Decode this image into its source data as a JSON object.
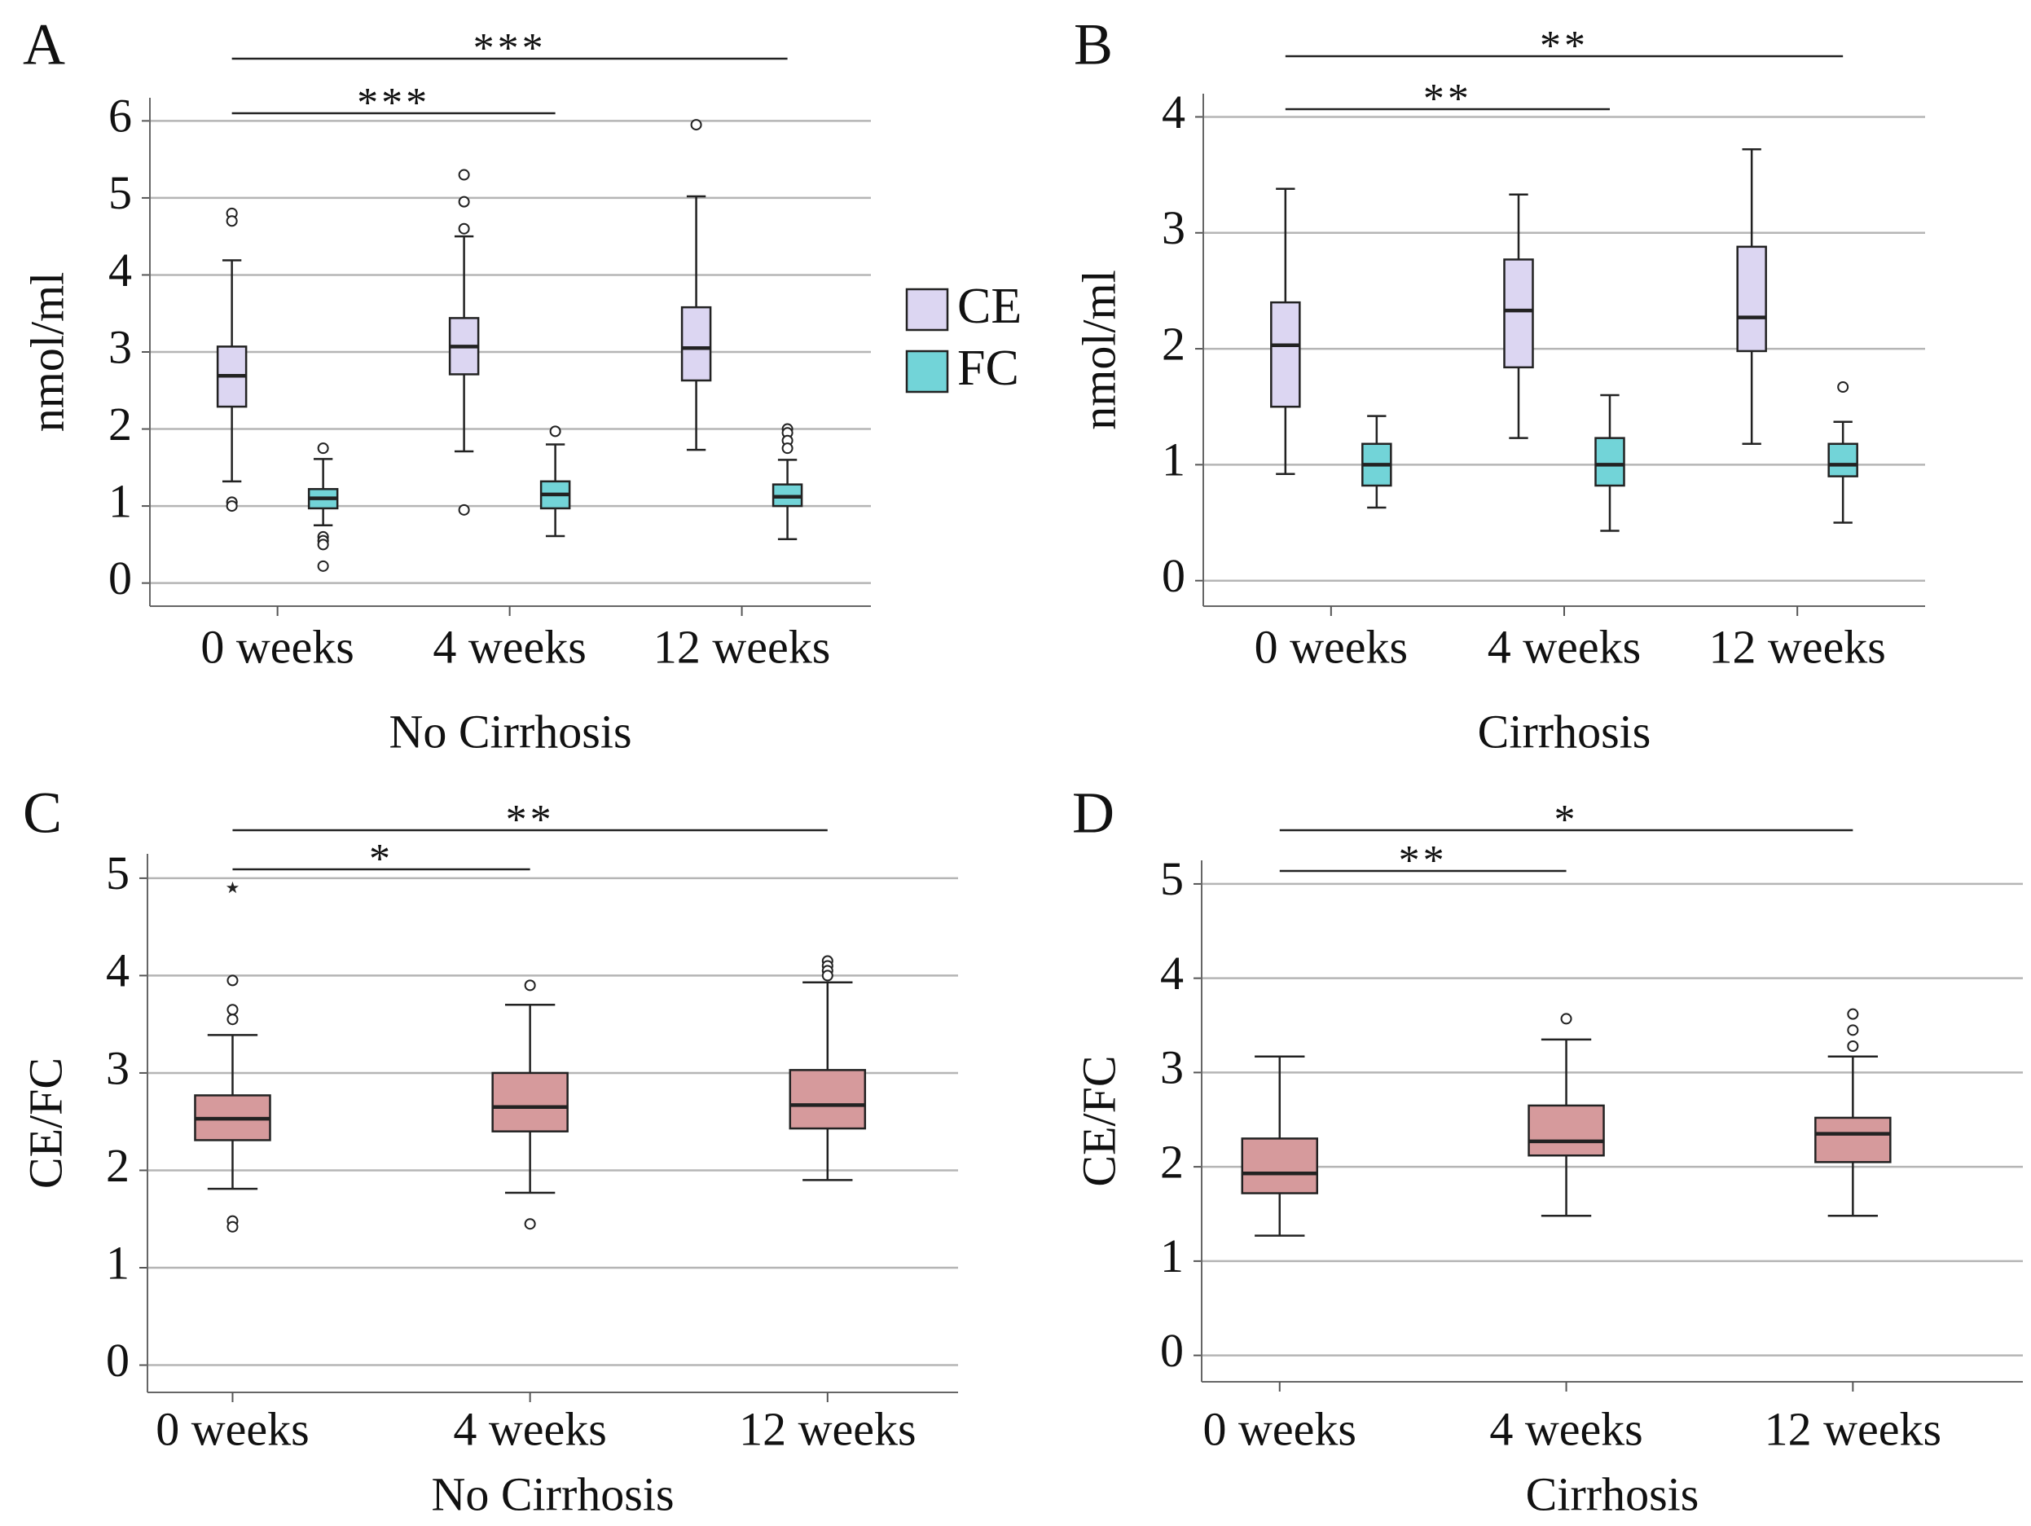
{
  "chart_data": [
    {
      "type": "box",
      "panel": "A",
      "xlabel": "No Cirrhosis",
      "ylabel": "nmol/ml",
      "categories": [
        "0 weeks",
        "4 weeks",
        "12 weeks"
      ],
      "ylim": [
        -0.3,
        6.3
      ],
      "yticks": [
        0,
        1,
        2,
        3,
        4,
        5,
        6
      ],
      "grid": true,
      "legend": true,
      "series": [
        {
          "name": "CE",
          "color": "#dcd6f2",
          "boxes": [
            {
              "low": 1.32,
              "q1": 2.29,
              "median": 2.69,
              "q3": 3.07,
              "high": 4.19,
              "outliers": [
                4.8,
                4.7,
                1.05,
                1.0
              ]
            },
            {
              "low": 1.71,
              "q1": 2.71,
              "median": 3.07,
              "q3": 3.44,
              "high": 4.5,
              "outliers": [
                5.3,
                4.95,
                4.6,
                0.95
              ]
            },
            {
              "low": 1.73,
              "q1": 2.63,
              "median": 3.05,
              "q3": 3.58,
              "high": 5.02,
              "outliers": [
                5.95
              ]
            }
          ]
        },
        {
          "name": "FC",
          "color": "#72d4d8",
          "boxes": [
            {
              "low": 0.75,
              "q1": 0.97,
              "median": 1.1,
              "q3": 1.22,
              "high": 1.61,
              "outliers": [
                1.75,
                0.6,
                0.55,
                0.5,
                0.22
              ]
            },
            {
              "low": 0.61,
              "q1": 0.97,
              "median": 1.15,
              "q3": 1.32,
              "high": 1.8,
              "outliers": [
                1.97
              ]
            },
            {
              "low": 0.57,
              "q1": 1.0,
              "median": 1.12,
              "q3": 1.28,
              "high": 1.6,
              "outliers": [
                2.0,
                1.95,
                1.85,
                1.75
              ]
            }
          ]
        }
      ],
      "annotations": [
        {
          "text": "***",
          "from": "0 weeks",
          "to": "12 weeks"
        },
        {
          "text": "***",
          "from": "0 weeks",
          "to": "4 weeks"
        }
      ]
    },
    {
      "type": "box",
      "panel": "B",
      "xlabel": "Cirrhosis",
      "ylabel": "nmol/ml",
      "categories": [
        "0 weeks",
        "4 weeks",
        "12 weeks"
      ],
      "ylim": [
        -0.22,
        4.2
      ],
      "yticks": [
        0,
        1,
        2,
        3,
        4
      ],
      "grid": true,
      "series": [
        {
          "color": "#dcd6f2",
          "boxes": [
            {
              "low": 0.92,
              "q1": 1.5,
              "median": 2.03,
              "q3": 2.4,
              "high": 3.38,
              "outliers": []
            },
            {
              "low": 1.23,
              "q1": 1.84,
              "median": 2.33,
              "q3": 2.77,
              "high": 3.33,
              "outliers": []
            },
            {
              "low": 1.18,
              "q1": 1.98,
              "median": 2.27,
              "q3": 2.88,
              "high": 3.72,
              "outliers": []
            }
          ]
        },
        {
          "color": "#72d4d8",
          "boxes": [
            {
              "low": 0.63,
              "q1": 0.82,
              "median": 1.0,
              "q3": 1.18,
              "high": 1.42,
              "outliers": []
            },
            {
              "low": 0.43,
              "q1": 0.82,
              "median": 1.0,
              "q3": 1.23,
              "high": 1.6,
              "outliers": []
            },
            {
              "low": 0.5,
              "q1": 0.9,
              "median": 1.0,
              "q3": 1.18,
              "high": 1.37,
              "outliers": [
                1.67
              ]
            }
          ]
        }
      ],
      "annotations": [
        {
          "text": "**",
          "from": "0 weeks",
          "to": "12 weeks"
        },
        {
          "text": "**",
          "from": "0 weeks",
          "to": "4 weeks"
        }
      ]
    },
    {
      "type": "box",
      "panel": "C",
      "xlabel": "No Cirrhosis",
      "ylabel": "CE/FC",
      "categories": [
        "0 weeks",
        "4 weeks",
        "12 weeks"
      ],
      "ylim": [
        -0.28,
        5.25
      ],
      "yticks": [
        0,
        1,
        2,
        3,
        4,
        5
      ],
      "grid": true,
      "series": [
        {
          "color": "#d69a9c",
          "boxes": [
            {
              "low": 1.81,
              "q1": 2.31,
              "median": 2.53,
              "q3": 2.77,
              "high": 3.39,
              "outliers": [
                3.95,
                3.65,
                3.55,
                1.48,
                1.42
              ],
              "extremes": [
                4.9
              ]
            },
            {
              "low": 1.77,
              "q1": 2.4,
              "median": 2.65,
              "q3": 3.0,
              "high": 3.7,
              "outliers": [
                3.9,
                1.45
              ]
            },
            {
              "low": 1.9,
              "q1": 2.43,
              "median": 2.67,
              "q3": 3.03,
              "high": 3.93,
              "outliers": [
                4.15,
                4.1,
                4.05,
                4.0
              ]
            }
          ]
        }
      ],
      "annotations": [
        {
          "text": "**",
          "from": "0 weeks",
          "to": "12 weeks"
        },
        {
          "text": "*",
          "from": "0 weeks",
          "to": "4 weeks"
        }
      ]
    },
    {
      "type": "box",
      "panel": "D",
      "xlabel": "Cirrhosis",
      "ylabel": "CE/FC",
      "categories": [
        "0 weeks",
        "4 weeks",
        "12 weeks"
      ],
      "ylim": [
        -0.28,
        5.25
      ],
      "yticks": [
        0,
        1,
        2,
        3,
        4,
        5
      ],
      "grid": true,
      "series": [
        {
          "color": "#d69a9c",
          "boxes": [
            {
              "low": 1.27,
              "q1": 1.72,
              "median": 1.93,
              "q3": 2.3,
              "high": 3.17,
              "outliers": []
            },
            {
              "low": 1.48,
              "q1": 2.12,
              "median": 2.27,
              "q3": 2.65,
              "high": 3.35,
              "outliers": [
                3.57
              ]
            },
            {
              "low": 1.48,
              "q1": 2.05,
              "median": 2.35,
              "q3": 2.52,
              "high": 3.17,
              "outliers": [
                3.62,
                3.45,
                3.28
              ]
            }
          ]
        }
      ],
      "annotations": [
        {
          "text": "*",
          "from": "0 weeks",
          "to": "12 weeks"
        },
        {
          "text": "**",
          "from": "0 weeks",
          "to": "4 weeks"
        }
      ]
    }
  ]
}
